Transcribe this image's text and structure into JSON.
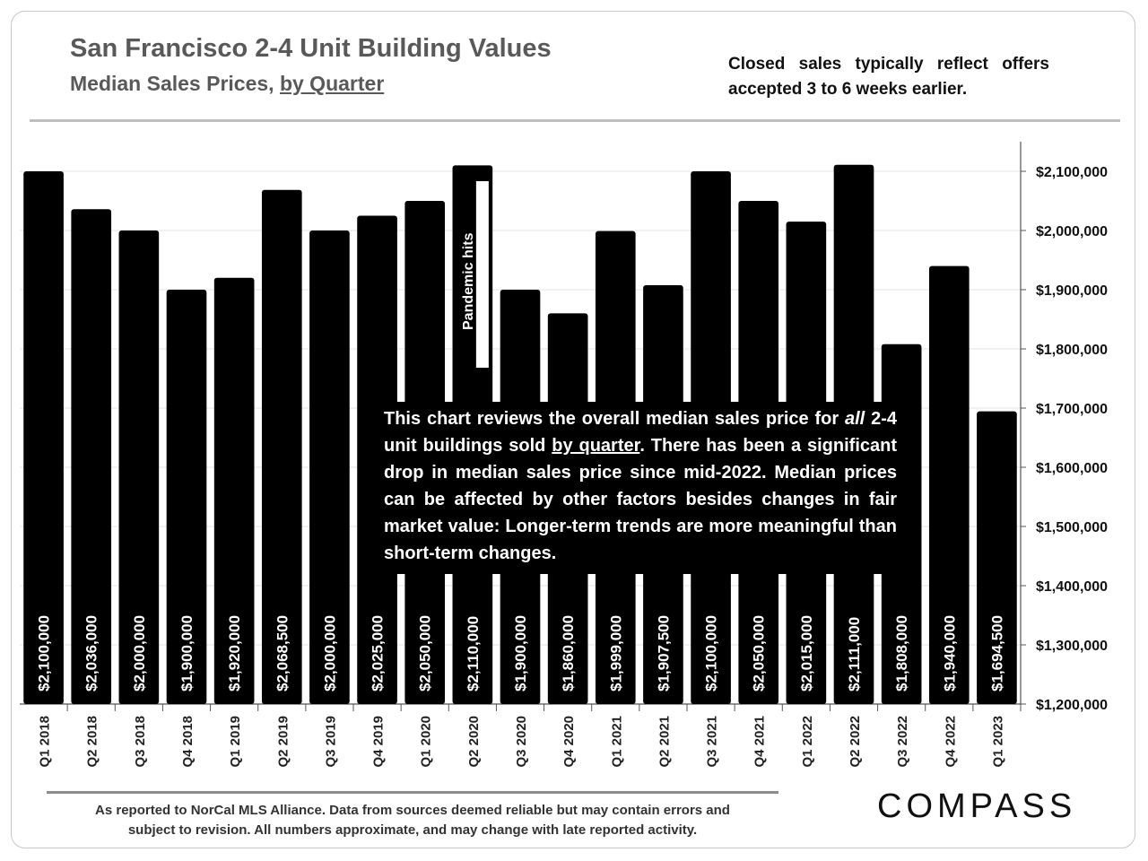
{
  "header": {
    "title": "San Francisco 2-4 Unit Building Values",
    "subtitle_prefix": "Median Sales Prices, ",
    "subtitle_underlined": "by Quarter",
    "note": "Closed sales typically reflect offers accepted 3 to 6 weeks earlier."
  },
  "callout": {
    "part1": "This chart reviews the overall median sales price for ",
    "part2_italic": "all",
    "part3": " 2-4 unit buildings sold ",
    "part4_underlined": "by quarter",
    "part5": ". There has been a significant drop in median sales price since mid-2022. Median prices can be affected by other factors besides changes in fair market value: Longer-term trends are more meaningful than short-term changes."
  },
  "footer": {
    "line1": "As reported to NorCal MLS Alliance. Data from sources deemed reliable but may contain errors and",
    "line2": "subject to revision. All numbers approximate, and may change with late reported activity."
  },
  "logo": "COMPASS",
  "chart_data": {
    "type": "bar",
    "title": "San Francisco 2-4 Unit Building Values",
    "subtitle": "Median Sales Prices, by Quarter",
    "xlabel": "",
    "ylabel": "",
    "ylim": [
      1200000,
      2150000
    ],
    "y_axis_side": "right",
    "y_ticks": [
      1200000,
      1300000,
      1400000,
      1500000,
      1600000,
      1700000,
      1800000,
      1900000,
      2000000,
      2100000
    ],
    "y_tick_labels": [
      "$1,200,000",
      "$1,300,000",
      "$1,400,000",
      "$1,500,000",
      "$1,600,000",
      "$1,700,000",
      "$1,800,000",
      "$1,900,000",
      "$2,000,000",
      "$2,100,000"
    ],
    "grid": true,
    "categories": [
      "Q1 2018",
      "Q2 2018",
      "Q3 2018",
      "Q4 2018",
      "Q1 2019",
      "Q2 2019",
      "Q3 2019",
      "Q4 2019",
      "Q1 2020",
      "Q2 2020",
      "Q3 2020",
      "Q4 2020",
      "Q1 2021",
      "Q2 2021",
      "Q3 2021",
      "Q4 2021",
      "Q1 2022",
      "Q2 2022",
      "Q3 2022",
      "Q4 2022",
      "Q1 2023"
    ],
    "values": [
      2100000,
      2036000,
      2000000,
      1900000,
      1920000,
      2068500,
      2000000,
      2025000,
      2050000,
      2110000,
      1900000,
      1860000,
      1999000,
      1907500,
      2100000,
      2050000,
      2015000,
      2111000,
      1808000,
      1940000,
      1694500
    ],
    "data_labels": [
      "$2,100,000",
      "$2,036,000",
      "$2,000,000",
      "$1,900,000",
      "$1,920,000",
      "$2,068,500",
      "$2,000,000",
      "$2,025,000",
      "$2,050,000",
      "$2,110,000",
      "$1,900,000",
      "$1,860,000",
      "$1,999,000",
      "$1,907,500",
      "$2,100,000",
      "$2,050,000",
      "$2,015,000",
      "$2,111,000",
      "$1,808,000",
      "$1,940,000",
      "$1,694,500"
    ],
    "annotations": [
      {
        "category": "Q2 2020",
        "text": "Pandemic hits"
      }
    ],
    "bar_color": "#000000",
    "label_color": "#ffffff"
  }
}
